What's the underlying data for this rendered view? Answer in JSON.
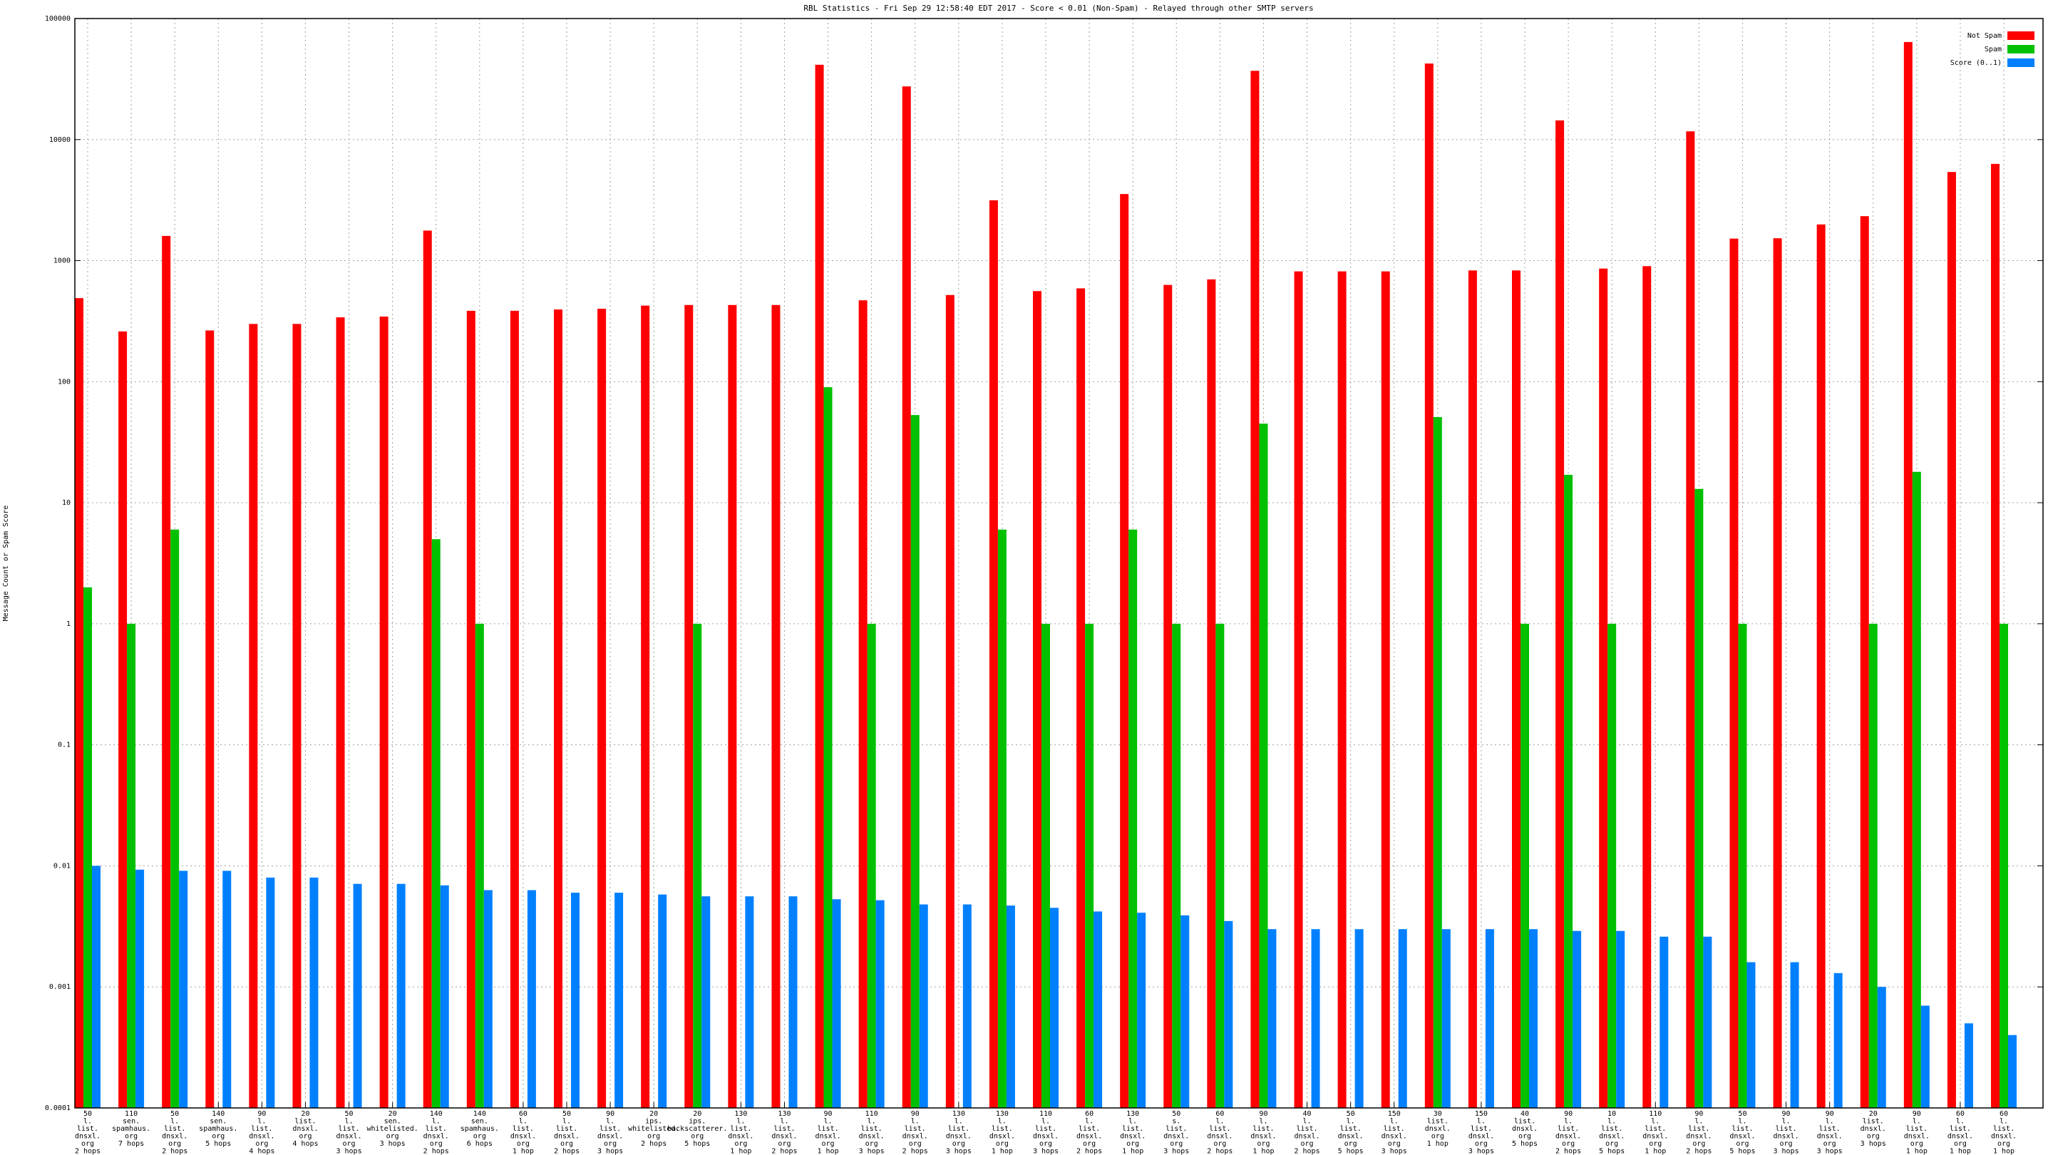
{
  "chart_data": {
    "type": "bar",
    "title": "RBL Statistics - Fri Sep 29 12:58:40 EDT 2017 - Score < 0.01 (Non-Spam) - Relayed through other SMTP servers",
    "y_label": "Message Count or Spam Score",
    "log_scale": true,
    "grid": true,
    "legend": "top-right",
    "ylim": [
      0.0001,
      100000
    ],
    "yticks": [
      0.0001,
      0.001,
      0.01,
      0.1,
      1,
      10,
      100,
      1000,
      10000,
      100000
    ],
    "categories": [
      "50\nl.\nlist.\ndnsxl.\norg\n2 hops",
      "110\nsen.\nspamhaus.\norg\n7 hops",
      "50\nl.\nlist.\ndnsxl.\norg\n2 hops",
      "140\nsen.\nspamhaus.\norg\n5 hops",
      "90\nl.\nlist.\ndnsxl.\norg\n4 hops",
      "20\nlist.\ndnsxl.\norg\n4 hops",
      "50\nl.\nlist.\ndnsxl.\norg\n3 hops",
      "20\nsen.\nwhitelisted.\norg\n3 hops",
      "140\nl.\nlist.\ndnsxl.\norg\n2 hops",
      "140\nsen.\nspamhaus.\norg\n6 hops",
      "60\nl.\nlist.\ndnsxl.\norg\n1 hop",
      "50\nl.\nlist.\ndnsxl.\norg\n2 hops",
      "90\nl.\nlist.\ndnsxl.\norg\n3 hops",
      "20\nips.\nwhitelisted.\norg\n2 hops",
      "20\nips.\nbackscatterer.\norg\n5 hops",
      "130\nl.\nlist.\ndnsxl.\norg\n1 hop",
      "130\nl.\nlist.\ndnsxl.\norg\n2 hops",
      "90\nl.\nlist.\ndnsxl.\norg\n1 hop",
      "110\nl.\nlist.\ndnsxl.\norg\n3 hops",
      "90\nl.\nlist.\ndnsxl.\norg\n2 hops",
      "130\nl.\nlist.\ndnsxl.\norg\n3 hops",
      "130\nl.\nlist.\ndnsxl.\norg\n1 hop",
      "110\nl.\nlist.\ndnsxl.\norg\n3 hops",
      "60\nl.\nlist.\ndnsxl.\norg\n2 hops",
      "130\nl.\nlist.\ndnsxl.\norg\n1 hop",
      "50\ns.\nlist.\ndnsxl.\norg\n3 hops",
      "60\nl.\nlist.\ndnsxl.\norg\n2 hops",
      "90\nl.\nlist.\ndnsxl.\norg\n1 hop",
      "40\nl.\nlist.\ndnsxl.\norg\n2 hops",
      "50\nl.\nlist.\ndnsxl.\norg\n5 hops",
      "150\nl.\nlist.\ndnsxl.\norg\n3 hops",
      "30\nlist.\ndnsxl.\norg\n1 hop",
      "150\nl.\nlist.\ndnsxl.\norg\n3 hops",
      "40\nlist.\ndnsxl.\norg\n5 hops",
      "90\nl.\nlist.\ndnsxl.\norg\n2 hops",
      "10\nl.\nlist.\ndnsxl.\norg\n5 hops",
      "110\nl.\nlist.\ndnsxl.\norg\n1 hop",
      "90\nl.\nlist.\ndnsxl.\norg\n2 hops",
      "50\nl.\nlist.\ndnsxl.\norg\n5 hops",
      "90\nl.\nlist.\ndnsxl.\norg\n3 hops",
      "90\nl.\nlist.\ndnsxl.\norg\n3 hops",
      "20\nlist.\ndnsxl.\norg\n3 hops",
      "90\nl.\nlist.\ndnsxl.\norg\n1 hop",
      "60\nl.\nlist.\ndnsxl.\norg\n1 hop",
      "60\nl.\nlist.\ndnsxl.\norg\n1 hop"
    ],
    "series": [
      {
        "name": "Not Spam",
        "color": "#ff0000",
        "values": [
          490,
          260,
          1600,
          265,
          300,
          300,
          340,
          345,
          1770,
          385,
          385,
          395,
          400,
          425,
          430,
          430,
          430,
          41500,
          470,
          27500,
          520,
          3150,
          560,
          590,
          3550,
          630,
          700,
          37000,
          815,
          815,
          815,
          42500,
          830,
          830,
          14400,
          860,
          900,
          11700,
          1520,
          1530,
          1990,
          2330,
          64000,
          5400,
          6300
        ]
      },
      {
        "name": "Spam",
        "color": "#00c000",
        "values": [
          2,
          1,
          6,
          null,
          null,
          null,
          null,
          null,
          5,
          1,
          null,
          null,
          null,
          null,
          1,
          null,
          null,
          90,
          1,
          53,
          null,
          6,
          1,
          1,
          6,
          1,
          1,
          45,
          null,
          null,
          null,
          51,
          null,
          1,
          17,
          1,
          null,
          13,
          1,
          null,
          null,
          1,
          18,
          null,
          1
        ]
      },
      {
        "name": "Score (0..1)",
        "color": "#0080ff",
        "values": [
          0.01,
          0.0093,
          0.0091,
          0.0091,
          0.008,
          0.008,
          0.0071,
          0.0071,
          0.0069,
          0.0063,
          0.0063,
          0.006,
          0.006,
          0.0058,
          0.0056,
          0.0056,
          0.0056,
          0.0053,
          0.0052,
          0.0048,
          0.0048,
          0.0047,
          0.0045,
          0.0042,
          0.0041,
          0.0039,
          0.0035,
          0.003,
          0.003,
          0.003,
          0.003,
          0.003,
          0.003,
          0.003,
          0.0029,
          0.0029,
          0.0026,
          0.0026,
          0.0016,
          0.0016,
          0.0013,
          0.001,
          0.0007,
          0.0005,
          0.0004
        ]
      }
    ]
  }
}
